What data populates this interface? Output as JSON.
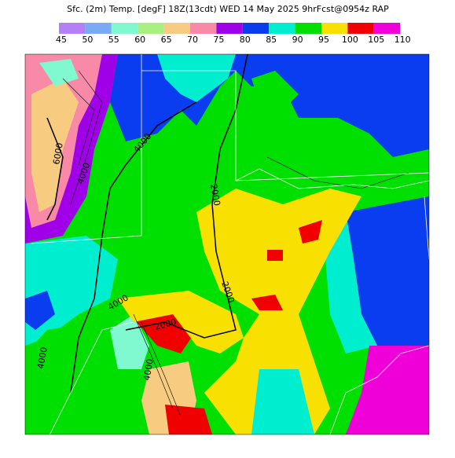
{
  "header": {
    "title": "Sfc. (2m) Temp. [degF] 18Z(13cdt) WED 14 May 2025 9hrFcst@0954z RAP"
  },
  "colorbar": {
    "labels": [
      45,
      50,
      55,
      60,
      65,
      70,
      75,
      80,
      85,
      90,
      95,
      100,
      105,
      110
    ],
    "colors": [
      "#b580f5",
      "#7aaaf5",
      "#80f8d0",
      "#a8f080",
      "#f8cc80",
      "#f88aa8",
      "#a000e8",
      "#0a3cf0",
      "#00eed0",
      "#00e000",
      "#f8e000",
      "#f00000",
      "#f000d8"
    ]
  },
  "contour_labels": [
    "6000",
    "4000",
    "4000",
    "2000",
    "2000",
    "4000",
    "2000",
    "4000",
    "4000"
  ]
}
